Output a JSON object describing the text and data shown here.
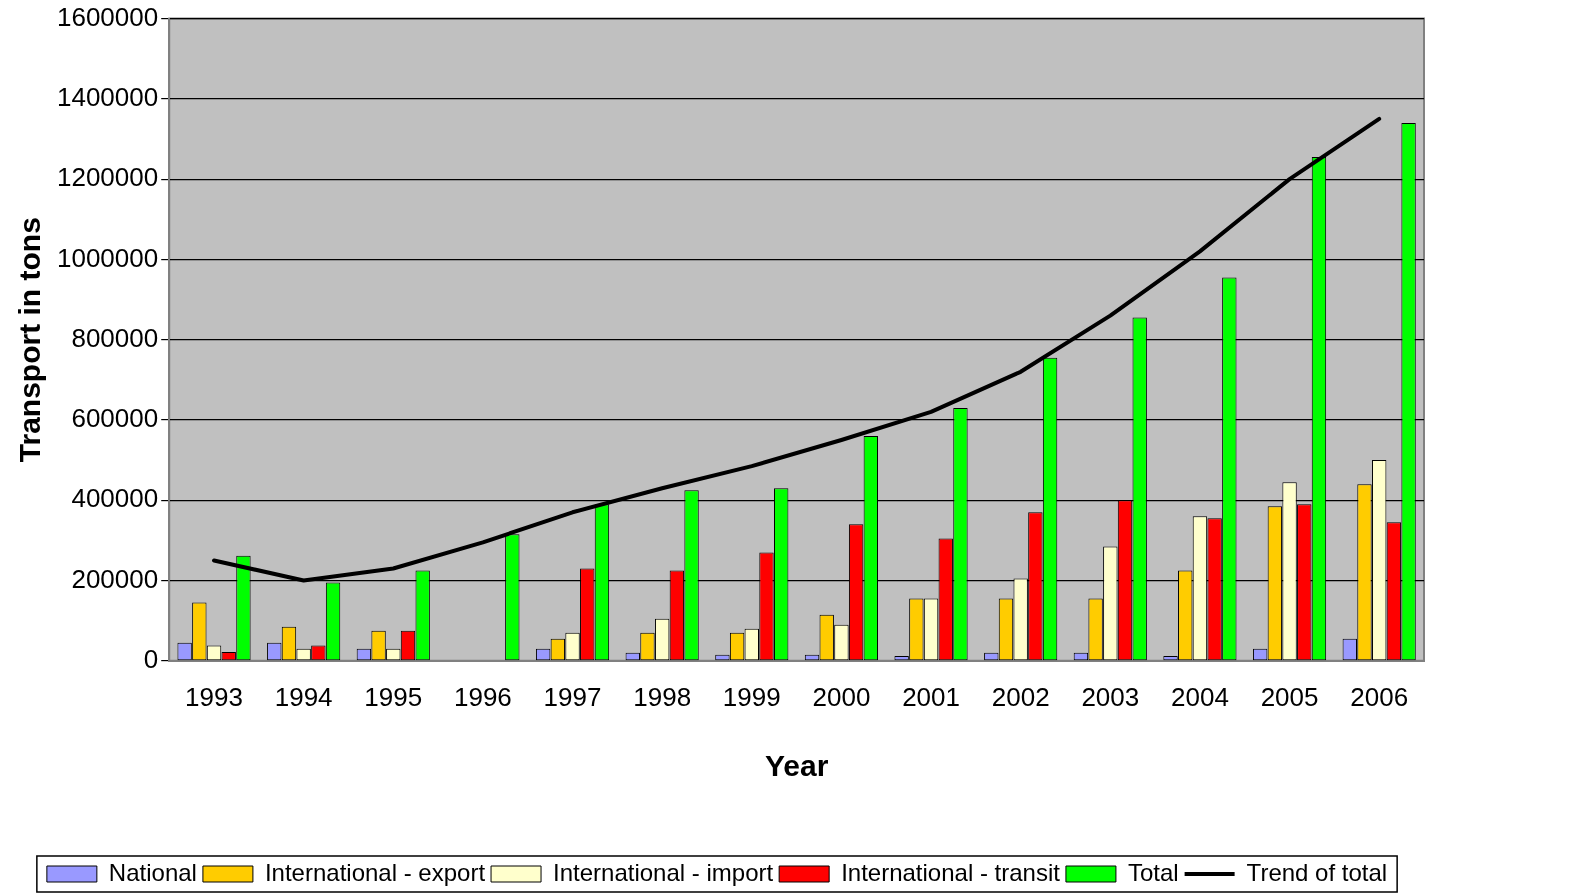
{
  "chart_data": {
    "type": "bar",
    "xlabel": "Year",
    "ylabel": "Transport in tons",
    "categories": [
      "1993",
      "1994",
      "1995",
      "1996",
      "1997",
      "1998",
      "1999",
      "2000",
      "2001",
      "2002",
      "2003",
      "2004",
      "2005",
      "2006"
    ],
    "series": [
      {
        "name": "National",
        "color": "#9999ff",
        "values": [
          45000,
          45000,
          30000,
          null,
          30000,
          20000,
          15000,
          15000,
          12000,
          20000,
          20000,
          12000,
          30000,
          55000
        ]
      },
      {
        "name": "International - export",
        "color": "#ffcc00",
        "values": [
          145000,
          85000,
          75000,
          null,
          55000,
          70000,
          70000,
          115000,
          155000,
          155000,
          155000,
          225000,
          385000,
          440000
        ]
      },
      {
        "name": "International - import",
        "color": "#ffffcc",
        "values": [
          38000,
          30000,
          30000,
          null,
          70000,
          105000,
          80000,
          90000,
          155000,
          205000,
          285000,
          360000,
          445000,
          500000
        ]
      },
      {
        "name": "International - transit",
        "color": "#ff0000",
        "values": [
          22000,
          38000,
          75000,
          null,
          230000,
          225000,
          270000,
          340000,
          305000,
          370000,
          400000,
          355000,
          390000,
          345000
        ]
      },
      {
        "name": "Total",
        "color": "#00ff00",
        "values": [
          262000,
          195000,
          225000,
          315000,
          390000,
          425000,
          430000,
          560000,
          630000,
          755000,
          855000,
          955000,
          1255000,
          1340000
        ]
      },
      {
        "name": "Trend of total",
        "type": "line",
        "color": "#000000",
        "values": [
          250000,
          200000,
          230000,
          295000,
          370000,
          430000,
          485000,
          550000,
          620000,
          720000,
          860000,
          1020000,
          1200000,
          1350000
        ]
      }
    ],
    "ylim": [
      0,
      1600000
    ],
    "yticks": [
      0,
      200000,
      400000,
      600000,
      800000,
      1000000,
      1200000,
      1400000,
      1600000
    ],
    "grid": "y",
    "legend": "bottom",
    "marker": "none"
  }
}
